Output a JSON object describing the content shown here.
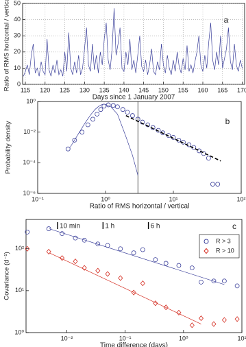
{
  "chart_data": [
    {
      "type": "line",
      "panel_label": "a",
      "xlabel": "Days since 1 January 2007",
      "ylabel": "Ratio of RMS horizontal / vertical",
      "xlim": [
        114.3,
        170.6
      ],
      "ylim": [
        0,
        50
      ],
      "xticks": [
        115,
        120,
        125,
        130,
        135,
        140,
        145,
        150,
        155,
        160,
        165,
        170
      ],
      "yticks": [
        0,
        10,
        20,
        30,
        40,
        50
      ],
      "grid": true,
      "x": [
        114.5,
        115,
        115.5,
        116,
        116.5,
        117,
        117.5,
        118,
        118.5,
        119,
        119.5,
        120,
        120.5,
        121,
        121.5,
        122,
        122.5,
        123,
        123.5,
        124,
        124.5,
        125,
        125.5,
        126,
        126.5,
        127,
        127.5,
        128,
        128.5,
        129,
        129.5,
        130,
        130.5,
        131,
        131.5,
        132,
        132.5,
        133,
        133.5,
        134,
        134.5,
        135,
        135.5,
        136,
        136.5,
        137,
        137.5,
        138,
        138.5,
        139,
        139.5,
        140,
        140.5,
        141,
        141.5,
        142,
        142.5,
        143,
        143.5,
        144,
        144.5,
        145,
        145.5,
        146,
        146.5,
        147,
        147.5,
        148,
        148.5,
        149,
        149.5,
        150,
        150.5,
        151,
        151.5,
        152,
        152.5,
        153,
        153.5,
        154,
        154.5,
        155,
        155.5,
        156,
        156.5,
        157,
        157.5,
        158,
        158.5,
        159,
        159.5,
        160,
        160.5,
        161,
        161.5,
        162,
        162.5,
        163,
        163.5,
        164,
        164.5,
        165,
        165.5,
        166,
        166.5,
        167,
        167.5,
        168,
        168.5,
        169,
        169.5,
        170
      ],
      "series": [
        {
          "kind": "line",
          "color": "#3a3f9a",
          "values": [
            5,
            8,
            12,
            6,
            18,
            25,
            7,
            10,
            5,
            14,
            8,
            6,
            28,
            9,
            5,
            12,
            7,
            15,
            6,
            9,
            5,
            20,
            8,
            32,
            10,
            6,
            14,
            7,
            18,
            6,
            10,
            22,
            35,
            12,
            8,
            25,
            9,
            18,
            7,
            20,
            12,
            28,
            38,
            15,
            9,
            22,
            47,
            18,
            25,
            35,
            10,
            8,
            20,
            12,
            28,
            9,
            15,
            7,
            18,
            30,
            11,
            8,
            15,
            6,
            12,
            22,
            8,
            6,
            14,
            9,
            25,
            12,
            7,
            18,
            10,
            6,
            15,
            8,
            20,
            11,
            7,
            16,
            9,
            24,
            8,
            12,
            7,
            14,
            20,
            30,
            12,
            8,
            18,
            10,
            26,
            38,
            15,
            9,
            20,
            12,
            30,
            10,
            16,
            22,
            35,
            14,
            9,
            25,
            12,
            8,
            15,
            10
          ]
        }
      ]
    },
    {
      "type": "scatter",
      "panel_label": "b",
      "xlabel": "Ratio of RMS horizontal / vertical",
      "ylabel": "Probability density",
      "log": true,
      "xlim": [
        0.1,
        100
      ],
      "ylim": [
        1e-06,
        1
      ],
      "xticks": [
        {
          "value": 0.1,
          "label": "10⁻¹"
        },
        {
          "value": 1,
          "label": "10⁰"
        },
        {
          "value": 10,
          "label": "10¹"
        },
        {
          "value": 100,
          "label": "10²"
        }
      ],
      "yticks": [
        {
          "value": 1e-06,
          "label": "10⁻⁶"
        },
        {
          "value": 0.0001,
          "label": "10⁻⁴"
        },
        {
          "value": 0.01,
          "label": "10⁻²"
        },
        {
          "value": 1,
          "label": "10⁰"
        }
      ],
      "vline": 3,
      "series": [
        {
          "kind": "markers",
          "marker": "circle",
          "color": "#3a3f9a",
          "x": [
            0.28,
            0.35,
            0.45,
            0.55,
            0.65,
            0.75,
            0.85,
            0.95,
            1.1,
            1.3,
            1.5,
            1.8,
            2.1,
            2.5,
            3,
            3.5,
            4.2,
            5,
            6,
            7,
            8.5,
            10,
            12,
            14,
            17,
            20,
            24,
            28,
            33,
            38,
            45
          ],
          "values": [
            0.0008,
            0.003,
            0.01,
            0.03,
            0.07,
            0.15,
            0.3,
            0.5,
            0.6,
            0.55,
            0.45,
            0.3,
            0.2,
            0.12,
            0.07,
            0.045,
            0.03,
            0.02,
            0.013,
            0.009,
            0.006,
            0.0045,
            0.003,
            0.0022,
            0.0015,
            0.001,
            0.0006,
            0.0004,
            0.0002,
            4e-06,
            4e-06
          ]
        },
        {
          "kind": "line",
          "color": "#3a3f9a",
          "x": [
            0.3,
            0.4,
            0.5,
            0.6,
            0.7,
            0.8,
            0.9,
            1,
            1.2,
            1.5,
            2,
            2.5,
            3
          ],
          "values": [
            0.001,
            0.008,
            0.04,
            0.13,
            0.3,
            0.5,
            0.65,
            0.65,
            0.45,
            0.15,
            0.005,
            0.0003,
            1.5e-05
          ]
        },
        {
          "kind": "dashed",
          "color": "#000000",
          "x": [
            2,
            50
          ],
          "values": [
            0.12,
            0.00013
          ]
        }
      ]
    },
    {
      "type": "scatter",
      "panel_label": "c",
      "xlabel": "Time difference (days)",
      "ylabel": "Covariance (d⁻¹)",
      "log": true,
      "xlim": [
        0.002,
        10
      ],
      "ylim": [
        1,
        500
      ],
      "xticks": [
        {
          "value": 0.01,
          "label": "10⁻²"
        },
        {
          "value": 0.1,
          "label": "10⁻¹"
        },
        {
          "value": 1,
          "label": "10⁰"
        },
        {
          "value": 10,
          "label": "10¹"
        }
      ],
      "yticks": [
        {
          "value": 1,
          "label": "10⁰"
        },
        {
          "value": 10,
          "label": "10¹"
        },
        {
          "value": 100,
          "label": "10²"
        }
      ],
      "legend": "upper right",
      "annotations": [
        {
          "text": "10 min",
          "x": 0.00694
        },
        {
          "text": "1 h",
          "x": 0.0417
        },
        {
          "text": "6 h",
          "x": 0.25
        }
      ],
      "series": [
        {
          "name": "R > 3",
          "kind": "markers",
          "marker": "circle",
          "color": "#3a3f9a",
          "x": [
            0.0021,
            0.0049,
            0.0083,
            0.014,
            0.02,
            0.034,
            0.05,
            0.083,
            0.14,
            0.2,
            0.33,
            0.5,
            0.83,
            1.4,
            2,
            3.3,
            5,
            8.3
          ],
          "values": [
            250,
            300,
            230,
            180,
            160,
            130,
            120,
            100,
            80,
            95,
            55,
            45,
            40,
            35,
            16,
            17,
            17,
            13
          ]
        },
        {
          "name": "R > 10",
          "kind": "markers",
          "marker": "diamond",
          "color": "#d42a1e",
          "x": [
            0.0021,
            0.0049,
            0.0083,
            0.014,
            0.02,
            0.034,
            0.05,
            0.083,
            0.14,
            0.2,
            0.33,
            0.5,
            0.83,
            1.4,
            2,
            3.3,
            5,
            8.3
          ],
          "values": [
            100,
            85,
            60,
            50,
            35,
            30,
            25,
            20,
            9,
            15,
            5,
            4,
            3,
            1.5,
            2.2,
            1.6,
            2,
            2.1
          ]
        },
        {
          "kind": "line",
          "color": "#3a3f9a",
          "x": [
            0.005,
            5
          ],
          "values": [
            300,
            14
          ]
        },
        {
          "kind": "line",
          "color": "#d42a1e",
          "x": [
            0.005,
            2
          ],
          "values": [
            80,
            1.6
          ]
        }
      ]
    }
  ]
}
